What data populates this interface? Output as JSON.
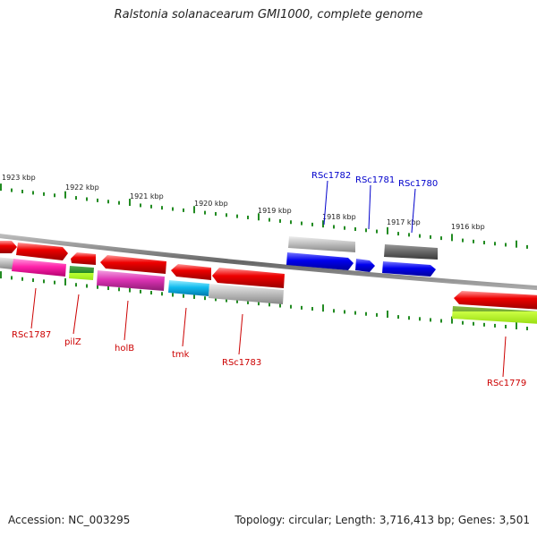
{
  "title": "Ralstonia solanacearum GMI1000, complete genome",
  "footer": {
    "accession": "Accession: NC_003295",
    "topology": "Topology: circular; Length: 3,716,413 bp; Genes: 3,501"
  },
  "scale_labels": [
    "1923 kbp",
    "1922 kbp",
    "1921 kbp",
    "1920 kbp",
    "1919 kbp",
    "1918 kbp",
    "1917 kbp",
    "1916 kbp"
  ],
  "upper_gene_labels": [
    "RSc1782",
    "RSc1781",
    "RSc1780"
  ],
  "lower_gene_labels": [
    "RSc1787",
    "pilZ",
    "holB",
    "tmk",
    "RSc1783",
    "RSc1779"
  ],
  "colors": {
    "label_upper": "#0000cc",
    "label_lower": "#cc0000",
    "tick": "#228b22",
    "backbone": "#777777"
  }
}
